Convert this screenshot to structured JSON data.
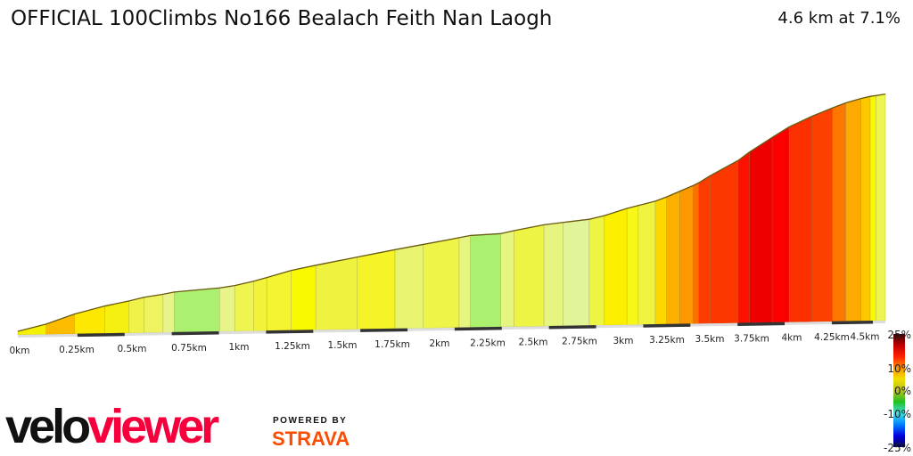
{
  "header": {
    "title": "OFFICIAL 100Climbs No166 Bealach Feith Nan Laogh",
    "summary": "4.6 km at 7.1%"
  },
  "branding": {
    "logo_part1": "velo",
    "logo_part2": "viewer",
    "powered_by": "POWERED BY",
    "strava": "STRAVA"
  },
  "chart_data": {
    "type": "area",
    "title": "",
    "xlabel": "",
    "ylabel": "",
    "xlim": [
      0,
      4.6
    ],
    "x_unit": "km",
    "x_ticks": [
      "0km",
      "0.25km",
      "0.5km",
      "0.75km",
      "1km",
      "1.25km",
      "1.5km",
      "1.75km",
      "2km",
      "2.25km",
      "2.5km",
      "2.75km",
      "3km",
      "3.25km",
      "3.5km",
      "3.75km",
      "4km",
      "4.25km",
      "4.5km"
    ],
    "profile_km": [
      0,
      0.15,
      0.3,
      0.46,
      0.59,
      0.67,
      0.77,
      0.83,
      1.07,
      1.15,
      1.25,
      1.32,
      1.45,
      1.58,
      1.8,
      2.0,
      2.15,
      2.34,
      2.4,
      2.56,
      2.63,
      2.79,
      2.89,
      3.03,
      3.11,
      3.23,
      3.29,
      3.38,
      3.44,
      3.51,
      3.58,
      3.61,
      3.67,
      3.82,
      3.88,
      4.0,
      4.09,
      4.21,
      4.32,
      4.39,
      4.47,
      4.52,
      4.55,
      4.6
    ],
    "profile_elevation_gain_m": [
      0,
      10,
      24,
      35,
      42,
      47,
      51,
      54,
      59,
      62,
      68,
      73,
      83,
      90,
      101,
      111,
      118,
      127,
      130,
      132,
      136,
      144,
      147,
      151,
      156,
      166,
      170,
      176,
      182,
      190,
      198,
      202,
      212,
      234,
      246,
      267,
      282,
      297,
      309,
      316,
      322,
      325,
      326,
      328
    ],
    "segment_colors": [
      "#f4f000",
      "#fbbc00",
      "#fce800",
      "#f6f010",
      "#eef24a",
      "#eef460",
      "#e6f48a",
      "#acf070",
      "#e6f48a",
      "#eef450",
      "#f2f238",
      "#f4f430",
      "#f8f800",
      "#f0f240",
      "#f4f428",
      "#e8f470",
      "#eef448",
      "#e6f480",
      "#acf070",
      "#e6f480",
      "#eef444",
      "#e6f480",
      "#e2f498",
      "#eef444",
      "#fcf000",
      "#f8f818",
      "#f0f440",
      "#fcd800",
      "#fcb000",
      "#fc9800",
      "#fc7000",
      "#fc3c00",
      "#fc3800",
      "#fc1000",
      "#ee0000",
      "#fc0000",
      "#fc3000",
      "#fc4000",
      "#fc7800",
      "#fcaa00",
      "#fcc800",
      "#f8f800",
      "#eef450"
    ],
    "legend": {
      "labels": [
        "25%",
        "10%",
        "0%",
        "-10%",
        "-25%"
      ],
      "values": [
        25,
        10,
        0,
        -10,
        -25
      ],
      "colors": [
        "#3a0000",
        "#c00000",
        "#ff2000",
        "#ff9000",
        "#f0e000",
        "#b8c020",
        "#20c020",
        "#40e0e0",
        "#0080ff",
        "#0000e0",
        "#000050"
      ],
      "placement": "right"
    }
  }
}
